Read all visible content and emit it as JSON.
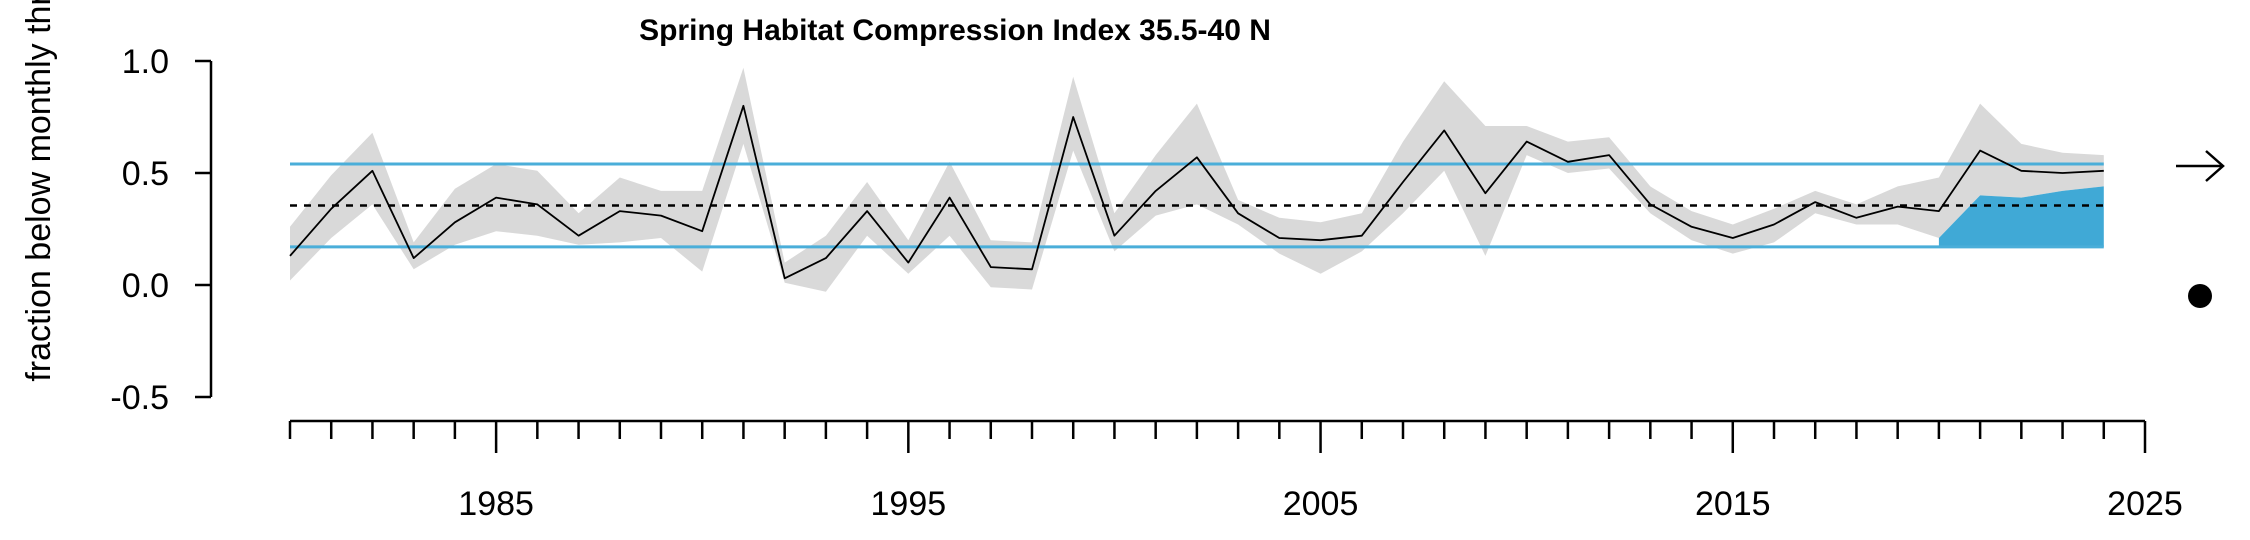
{
  "chart_data": {
    "type": "line",
    "title": "Spring Habitat Compression Index 35.5-40 N",
    "ylabel": "fraction below monthly thres",
    "xlabel": "",
    "xlim": [
      1980,
      2025
    ],
    "ylim": [
      -0.5,
      1.0
    ],
    "x_ticks_major": [
      1985,
      1995,
      2005,
      2015,
      2025
    ],
    "y_ticks": [
      1.0,
      0.5,
      0.0,
      -0.5
    ],
    "y_tick_labels": [
      "1.0",
      "0.5",
      "0.0",
      "-0.5"
    ],
    "x": [
      1980,
      1981,
      1982,
      1983,
      1984,
      1985,
      1986,
      1987,
      1988,
      1989,
      1990,
      1991,
      1992,
      1993,
      1994,
      1995,
      1996,
      1997,
      1998,
      1999,
      2000,
      2001,
      2002,
      2003,
      2004,
      2005,
      2006,
      2007,
      2008,
      2009,
      2010,
      2011,
      2012,
      2013,
      2014,
      2015,
      2016,
      2017,
      2018,
      2019,
      2020,
      2021,
      2022,
      2023,
      2024
    ],
    "values": [
      0.13,
      0.34,
      0.51,
      0.12,
      0.28,
      0.39,
      0.36,
      0.22,
      0.33,
      0.31,
      0.24,
      0.8,
      0.03,
      0.12,
      0.33,
      0.1,
      0.39,
      0.08,
      0.07,
      0.75,
      0.22,
      0.42,
      0.57,
      0.32,
      0.21,
      0.2,
      0.22,
      0.46,
      0.69,
      0.41,
      0.64,
      0.55,
      0.58,
      0.36,
      0.26,
      0.21,
      0.27,
      0.37,
      0.3,
      0.35,
      0.33,
      0.6,
      0.51,
      0.5,
      0.51
    ],
    "uncertainty_upper": [
      0.26,
      0.49,
      0.68,
      0.19,
      0.43,
      0.54,
      0.51,
      0.32,
      0.48,
      0.42,
      0.42,
      0.97,
      0.1,
      0.22,
      0.46,
      0.2,
      0.55,
      0.2,
      0.19,
      0.93,
      0.32,
      0.58,
      0.81,
      0.38,
      0.3,
      0.28,
      0.32,
      0.64,
      0.91,
      0.71,
      0.71,
      0.64,
      0.66,
      0.44,
      0.33,
      0.27,
      0.34,
      0.42,
      0.36,
      0.44,
      0.48,
      0.81,
      0.63,
      0.59,
      0.58
    ],
    "uncertainty_lower": [
      0.02,
      0.21,
      0.36,
      0.07,
      0.18,
      0.24,
      0.22,
      0.18,
      0.19,
      0.21,
      0.06,
      0.63,
      0.01,
      -0.03,
      0.22,
      0.05,
      0.22,
      -0.01,
      -0.02,
      0.6,
      0.15,
      0.31,
      0.36,
      0.27,
      0.14,
      0.05,
      0.15,
      0.32,
      0.51,
      0.13,
      0.58,
      0.5,
      0.52,
      0.32,
      0.2,
      0.14,
      0.19,
      0.32,
      0.27,
      0.27,
      0.21,
      0.4,
      0.39,
      0.42,
      0.44
    ],
    "mean_line": 0.355,
    "upper_threshold": 0.54,
    "lower_threshold": 0.17,
    "recent_period": [
      2020,
      2024
    ],
    "trend_indicator": "arrow-right",
    "mean_indicator": "filled-circle",
    "colors": {
      "series": "#000000",
      "uncertainty": "#d9d9d9",
      "threshold_lines": "#4aaed9",
      "recent_fill": "#40a9d6",
      "mean_line": "#000000"
    }
  }
}
